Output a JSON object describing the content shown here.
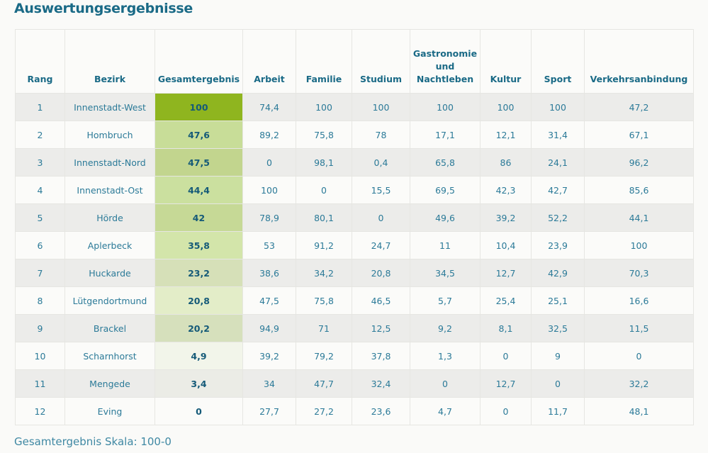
{
  "title": "Auswertungsergebnisse",
  "headers": [
    "Rang",
    "Bezirk",
    "Gesamtergebnis",
    "Arbeit",
    "Familie",
    "Studium",
    "Gastronomie und Nachtleben",
    "Kultur",
    "Sport",
    "Verkehrsanbindung"
  ],
  "rows": [
    {
      "rang": "1",
      "bezirk": "Innenstadt-West",
      "gesamt": "100",
      "arbeit": "74,4",
      "familie": "100",
      "studium": "100",
      "gastro": "100",
      "kultur": "100",
      "sport": "100",
      "verkehr": "47,2",
      "score_color": "#8fb51f"
    },
    {
      "rang": "2",
      "bezirk": "Hombruch",
      "gesamt": "47,6",
      "arbeit": "89,2",
      "familie": "75,8",
      "studium": "78",
      "gastro": "17,1",
      "kultur": "12,1",
      "sport": "31,4",
      "verkehr": "67,1",
      "score_color": "#c8dd98"
    },
    {
      "rang": "3",
      "bezirk": "Innenstadt-Nord",
      "gesamt": "47,5",
      "arbeit": "0",
      "familie": "98,1",
      "studium": "0,4",
      "gastro": "65,8",
      "kultur": "86",
      "sport": "24,1",
      "verkehr": "96,2",
      "score_color": "#c2d58e"
    },
    {
      "rang": "4",
      "bezirk": "Innenstadt-Ost",
      "gesamt": "44,4",
      "arbeit": "100",
      "familie": "0",
      "studium": "15,5",
      "gastro": "69,5",
      "kultur": "42,3",
      "sport": "42,7",
      "verkehr": "85,6",
      "score_color": "#cbe09f"
    },
    {
      "rang": "5",
      "bezirk": "Hörde",
      "gesamt": "42",
      "arbeit": "78,9",
      "familie": "80,1",
      "studium": "0",
      "gastro": "49,6",
      "kultur": "39,2",
      "sport": "52,2",
      "verkehr": "44,1",
      "score_color": "#c6d996"
    },
    {
      "rang": "6",
      "bezirk": "Aplerbeck",
      "gesamt": "35,8",
      "arbeit": "53",
      "familie": "91,2",
      "studium": "24,7",
      "gastro": "11",
      "kultur": "10,4",
      "sport": "23,9",
      "verkehr": "100",
      "score_color": "#d3e5aa"
    },
    {
      "rang": "7",
      "bezirk": "Huckarde",
      "gesamt": "23,2",
      "arbeit": "38,6",
      "familie": "34,2",
      "studium": "20,8",
      "gastro": "34,5",
      "kultur": "12,7",
      "sport": "42,9",
      "verkehr": "70,3",
      "score_color": "#d6e0b8"
    },
    {
      "rang": "8",
      "bezirk": "Lütgendortmund",
      "gesamt": "20,8",
      "arbeit": "47,5",
      "familie": "75,8",
      "studium": "46,5",
      "gastro": "5,7",
      "kultur": "25,4",
      "sport": "25,1",
      "verkehr": "16,6",
      "score_color": "#e3edc8"
    },
    {
      "rang": "9",
      "bezirk": "Brackel",
      "gesamt": "20,2",
      "arbeit": "94,9",
      "familie": "71",
      "studium": "12,5",
      "gastro": "9,2",
      "kultur": "8,1",
      "sport": "32,5",
      "verkehr": "11,5",
      "score_color": "#d6e0bc"
    },
    {
      "rang": "10",
      "bezirk": "Scharnhorst",
      "gesamt": "4,9",
      "arbeit": "39,2",
      "familie": "79,2",
      "studium": "37,8",
      "gastro": "1,3",
      "kultur": "0",
      "sport": "9",
      "verkehr": "0",
      "score_color": "#f2f5ea"
    },
    {
      "rang": "11",
      "bezirk": "Mengede",
      "gesamt": "3,4",
      "arbeit": "34",
      "familie": "47,7",
      "studium": "32,4",
      "gastro": "0",
      "kultur": "12,7",
      "sport": "0",
      "verkehr": "32,2",
      "score_color": "#ebece6"
    },
    {
      "rang": "12",
      "bezirk": "Eving",
      "gesamt": "0",
      "arbeit": "27,7",
      "familie": "27,2",
      "studium": "23,6",
      "gastro": "4,7",
      "kultur": "0",
      "sport": "11,7",
      "verkehr": "48,1",
      "score_color": "#fbfbf9"
    }
  ],
  "footer": "Gesamtergebnis Skala: 100-0"
}
